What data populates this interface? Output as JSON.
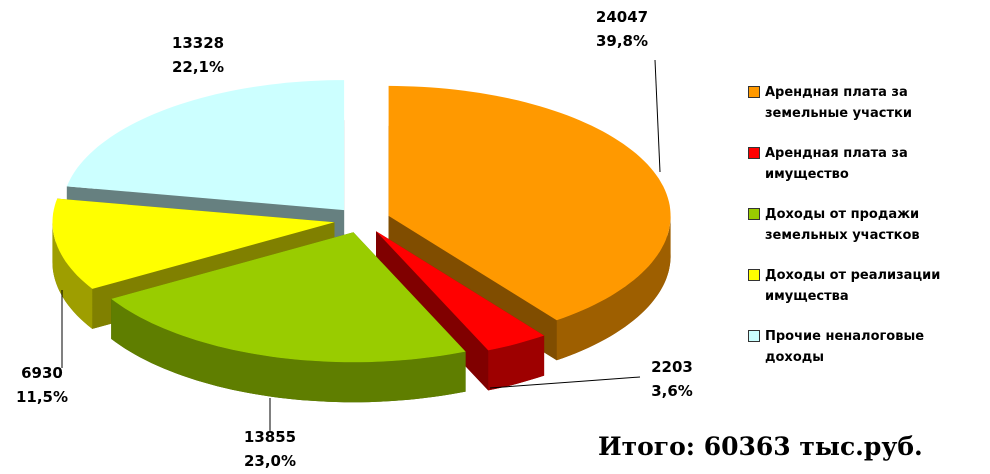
{
  "chart_data": {
    "type": "pie",
    "categories": [
      "Арендная плата за\nземельные участки",
      "Арендная плата за\nимущество",
      "Доходы от продажи\nземельных участков",
      "Доходы от реализации\nимущества",
      "Прочие неналоговые\nдоходы"
    ],
    "values": [
      24047,
      2203,
      13855,
      6930,
      13328
    ],
    "percentages": [
      39.8,
      3.6,
      23.0,
      11.5,
      22.1
    ],
    "percentage_labels": [
      "39,8%",
      "3,6%",
      "23,0%",
      "11,5%",
      "22,1%"
    ],
    "colors": [
      "#ff9900",
      "#ff0000",
      "#99cc00",
      "#ffff00",
      "#ccffff"
    ],
    "legend": "right",
    "annotation": "Итого: 60363 тыс.руб."
  }
}
